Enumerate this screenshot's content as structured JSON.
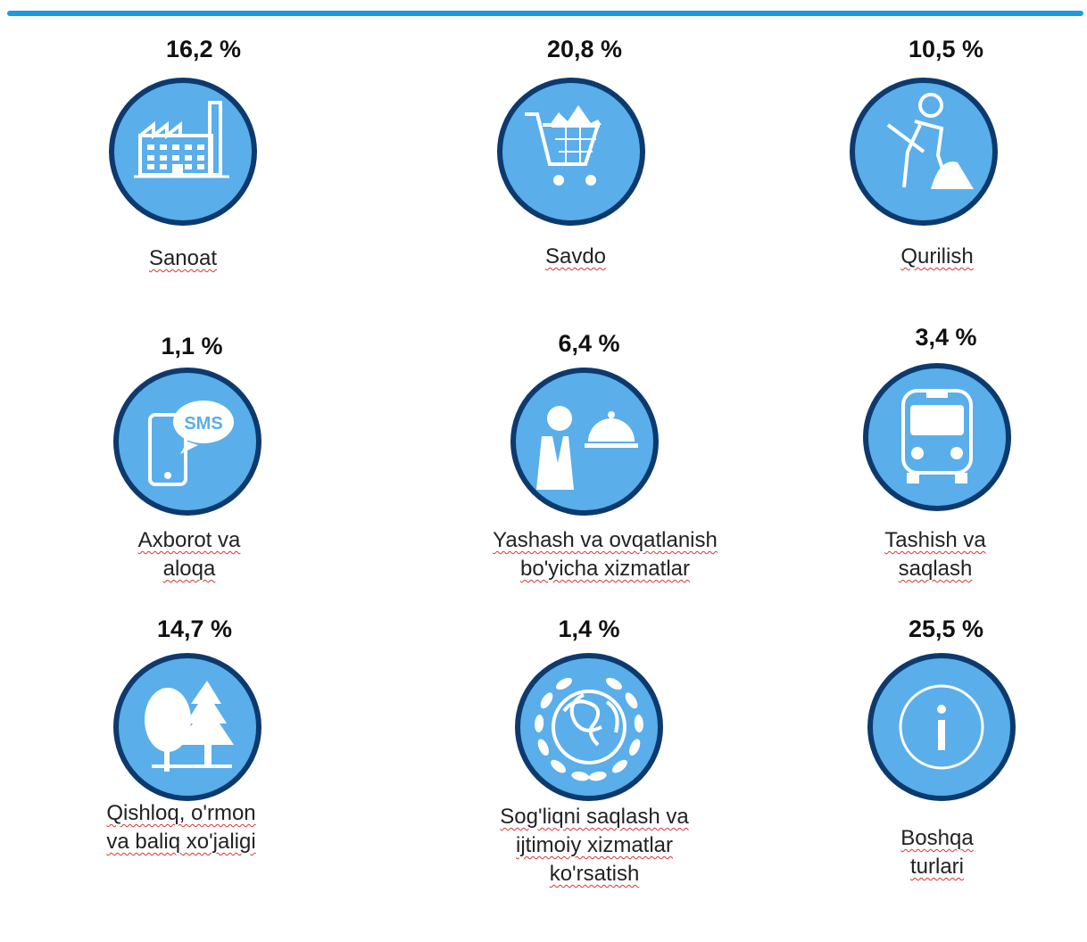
{
  "items": [
    {
      "value": "16,2 %",
      "label_lines": [
        "Sanoat"
      ]
    },
    {
      "value": "20,8 %",
      "label_lines": [
        "Savdo"
      ]
    },
    {
      "value": "10,5 %",
      "label_lines": [
        "Qurilish"
      ]
    },
    {
      "value": "1,1 %",
      "label_lines": [
        "Axborot va",
        "aloqa"
      ],
      "icon_text": "SMS"
    },
    {
      "value": "6,4 %",
      "label_lines": [
        "Yashash va ovqatlanish",
        "bo'yicha xizmatlar"
      ]
    },
    {
      "value": "3,4 %",
      "label_lines": [
        "Tashish va",
        "saqlash"
      ]
    },
    {
      "value": "14,7 %",
      "label_lines": [
        "Qishloq, o'rmon",
        "va baliq xo'jaligi"
      ]
    },
    {
      "value": "1,4 %",
      "label_lines": [
        "Sog'liqni saqlash va",
        "ijtimoiy xizmatlar",
        "ko'rsatish"
      ]
    },
    {
      "value": "25,5 %",
      "label_lines": [
        "Boshqa",
        "turlari"
      ]
    }
  ]
}
